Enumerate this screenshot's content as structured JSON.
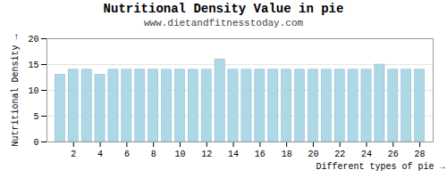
{
  "chart_data": {
    "type": "bar",
    "title": "Nutritional Density Value in pie",
    "subtitle": "www.dietandfitnesstoday.com",
    "xlabel": "Different types of pie",
    "ylabel": "Nutritional Density",
    "x": [
      1,
      2,
      3,
      4,
      5,
      6,
      7,
      8,
      9,
      10,
      11,
      12,
      13,
      14,
      15,
      16,
      17,
      18,
      19,
      20,
      21,
      22,
      23,
      24,
      25,
      26,
      27,
      28
    ],
    "values": [
      13,
      14,
      14,
      13,
      14,
      14,
      14,
      14,
      14,
      14,
      14,
      14,
      16,
      14,
      14,
      14,
      14,
      14,
      14,
      14,
      14,
      14,
      14,
      14,
      15,
      14,
      14,
      14
    ],
    "color": "#add8e6",
    "xlim": [
      0,
      29
    ],
    "xticks": [
      2,
      4,
      6,
      8,
      10,
      12,
      14,
      16,
      18,
      20,
      22,
      24,
      26,
      28
    ],
    "ylim": [
      0,
      20
    ],
    "yticks": [
      0,
      5,
      10,
      15,
      20
    ],
    "grid": true
  }
}
